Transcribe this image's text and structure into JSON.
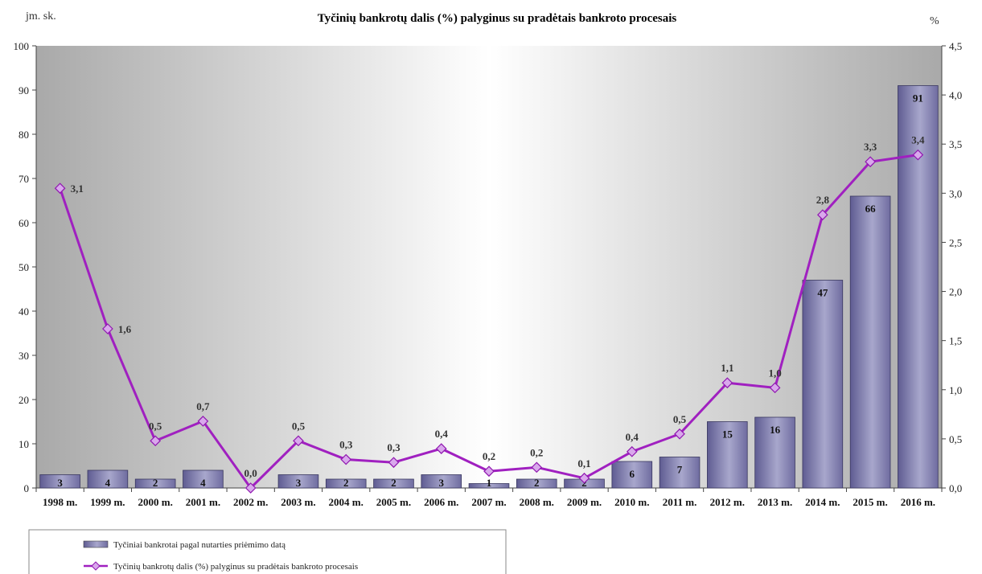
{
  "chart_data": {
    "type": "bar",
    "title": "Tyčinių bankrotų dalis (%) palyginus su pradėtais bankroto procesais",
    "ylabel": "jm. sk.",
    "y2label": "%",
    "ylim": [
      0,
      100
    ],
    "y2lim": [
      0,
      4.5
    ],
    "yticks": [
      "0",
      "10",
      "20",
      "30",
      "40",
      "50",
      "60",
      "70",
      "80",
      "90",
      "100"
    ],
    "y2ticks": [
      "0,0",
      "0,5",
      "1,0",
      "1,5",
      "2,0",
      "2,5",
      "3,0",
      "3,5",
      "4,0",
      "4,5"
    ],
    "categories": [
      "1998 m.",
      "1999 m.",
      "2000 m.",
      "2001 m.",
      "2002 m.",
      "2003 m.",
      "2004 m.",
      "2005 m.",
      "2006 m.",
      "2007 m.",
      "2008 m.",
      "2009 m.",
      "2010 m.",
      "2011 m.",
      "2012 m.",
      "2013 m.",
      "2014 m.",
      "2015 m.",
      "2016 m."
    ],
    "series": [
      {
        "name": "Tyčiniai bankrotai pagal nutarties priėmimo datą",
        "type": "bar",
        "axis": "left",
        "values": [
          3,
          4,
          2,
          4,
          0,
          3,
          2,
          2,
          3,
          1,
          2,
          2,
          6,
          7,
          15,
          16,
          47,
          66,
          91
        ],
        "labels": [
          "3",
          "4",
          "2",
          "4",
          "",
          "3",
          "2",
          "2",
          "3",
          "1",
          "2",
          "2",
          "6",
          "7",
          "15",
          "16",
          "47",
          "66",
          "91"
        ]
      },
      {
        "name": "Tyčinių bankrotų dalis (%) palyginus su pradėtais bankroto procesais",
        "type": "line",
        "axis": "right",
        "values": [
          3.05,
          1.62,
          0.48,
          0.68,
          0.0,
          0.48,
          0.29,
          0.26,
          0.4,
          0.17,
          0.21,
          0.1,
          0.37,
          0.55,
          1.07,
          1.02,
          2.78,
          3.32,
          3.39
        ],
        "labels": [
          "3,1",
          "1,6",
          "0,5",
          "0,7",
          "0,0",
          "0,5",
          "0,3",
          "0,3",
          "0,4",
          "0,2",
          "0,2",
          "0,1",
          "0,4",
          "0,5",
          "1,1",
          "1,0",
          "2,8",
          "3,3",
          "3,4"
        ]
      }
    ],
    "legend": "bottom-left",
    "grid": false,
    "colors": {
      "bar": "#7a78a8",
      "line": "#a020c0",
      "marker": "#d9a8ec"
    }
  }
}
